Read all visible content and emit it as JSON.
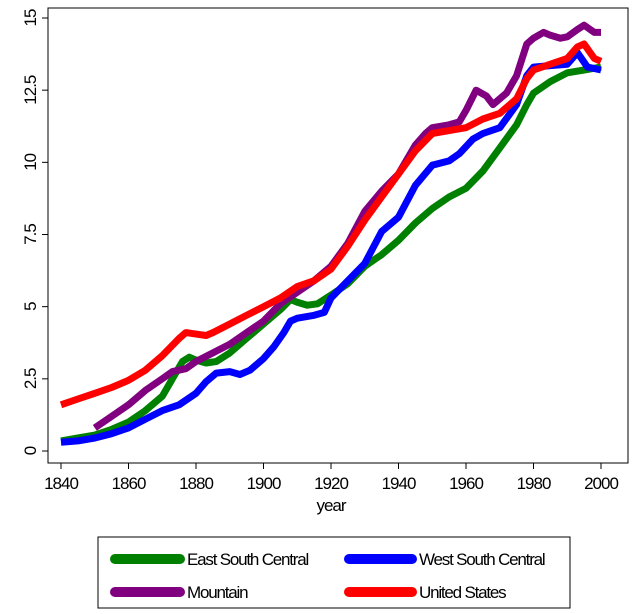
{
  "chart_data": {
    "type": "line",
    "title": "",
    "xlabel": "year",
    "ylabel": "",
    "xlim": [
      1840,
      2000
    ],
    "ylim": [
      0,
      15
    ],
    "xticks": [
      1840,
      1860,
      1880,
      1900,
      1920,
      1940,
      1960,
      1980,
      2000
    ],
    "yticks": [
      0,
      2.5,
      5,
      7.5,
      10,
      12.5,
      15
    ],
    "xtick_labels": [
      "1840",
      "1860",
      "1880",
      "1900",
      "1920",
      "1940",
      "1960",
      "1980",
      "2000"
    ],
    "ytick_labels": [
      "0",
      "2.5",
      "5",
      "7.5",
      "10",
      "12.5",
      "15"
    ],
    "grid": false,
    "legend_position": "bottom",
    "series": [
      {
        "name": "East South Central",
        "color": "#008000",
        "points": [
          [
            1840,
            0.35
          ],
          [
            1845,
            0.45
          ],
          [
            1850,
            0.55
          ],
          [
            1855,
            0.75
          ],
          [
            1860,
            1.0
          ],
          [
            1865,
            1.4
          ],
          [
            1870,
            1.9
          ],
          [
            1873,
            2.5
          ],
          [
            1876,
            3.1
          ],
          [
            1878,
            3.25
          ],
          [
            1880,
            3.15
          ],
          [
            1883,
            3.05
          ],
          [
            1886,
            3.1
          ],
          [
            1890,
            3.4
          ],
          [
            1895,
            3.9
          ],
          [
            1900,
            4.4
          ],
          [
            1905,
            4.9
          ],
          [
            1908,
            5.25
          ],
          [
            1910,
            5.15
          ],
          [
            1913,
            5.05
          ],
          [
            1916,
            5.1
          ],
          [
            1920,
            5.4
          ],
          [
            1925,
            5.8
          ],
          [
            1930,
            6.4
          ],
          [
            1935,
            6.8
          ],
          [
            1940,
            7.3
          ],
          [
            1945,
            7.9
          ],
          [
            1950,
            8.4
          ],
          [
            1955,
            8.8
          ],
          [
            1960,
            9.1
          ],
          [
            1965,
            9.7
          ],
          [
            1970,
            10.5
          ],
          [
            1975,
            11.3
          ],
          [
            1978,
            12.0
          ],
          [
            1980,
            12.4
          ],
          [
            1985,
            12.8
          ],
          [
            1990,
            13.1
          ],
          [
            1995,
            13.2
          ],
          [
            2000,
            13.3
          ]
        ]
      },
      {
        "name": "West South Central",
        "color": "#0000ff",
        "points": [
          [
            1840,
            0.3
          ],
          [
            1845,
            0.35
          ],
          [
            1850,
            0.45
          ],
          [
            1855,
            0.6
          ],
          [
            1860,
            0.8
          ],
          [
            1865,
            1.1
          ],
          [
            1870,
            1.4
          ],
          [
            1875,
            1.6
          ],
          [
            1880,
            2.0
          ],
          [
            1883,
            2.4
          ],
          [
            1886,
            2.7
          ],
          [
            1890,
            2.75
          ],
          [
            1893,
            2.65
          ],
          [
            1896,
            2.8
          ],
          [
            1900,
            3.2
          ],
          [
            1903,
            3.6
          ],
          [
            1906,
            4.1
          ],
          [
            1908,
            4.5
          ],
          [
            1910,
            4.6
          ],
          [
            1915,
            4.7
          ],
          [
            1918,
            4.8
          ],
          [
            1920,
            5.3
          ],
          [
            1925,
            5.9
          ],
          [
            1930,
            6.5
          ],
          [
            1935,
            7.6
          ],
          [
            1940,
            8.1
          ],
          [
            1945,
            9.2
          ],
          [
            1950,
            9.9
          ],
          [
            1955,
            10.05
          ],
          [
            1958,
            10.3
          ],
          [
            1962,
            10.8
          ],
          [
            1965,
            11.0
          ],
          [
            1970,
            11.2
          ],
          [
            1975,
            12.0
          ],
          [
            1978,
            13.0
          ],
          [
            1980,
            13.3
          ],
          [
            1985,
            13.35
          ],
          [
            1990,
            13.4
          ],
          [
            1993,
            13.8
          ],
          [
            1996,
            13.3
          ],
          [
            2000,
            13.2
          ]
        ]
      },
      {
        "name": "Mountain",
        "color": "#800080",
        "points": [
          [
            1850,
            0.8
          ],
          [
            1855,
            1.2
          ],
          [
            1860,
            1.6
          ],
          [
            1865,
            2.1
          ],
          [
            1870,
            2.5
          ],
          [
            1873,
            2.75
          ],
          [
            1877,
            2.85
          ],
          [
            1880,
            3.1
          ],
          [
            1885,
            3.4
          ],
          [
            1890,
            3.7
          ],
          [
            1895,
            4.1
          ],
          [
            1900,
            4.5
          ],
          [
            1905,
            5.1
          ],
          [
            1910,
            5.5
          ],
          [
            1915,
            5.9
          ],
          [
            1920,
            6.4
          ],
          [
            1925,
            7.2
          ],
          [
            1930,
            8.3
          ],
          [
            1935,
            9.0
          ],
          [
            1940,
            9.6
          ],
          [
            1945,
            10.6
          ],
          [
            1948,
            11.0
          ],
          [
            1950,
            11.2
          ],
          [
            1955,
            11.3
          ],
          [
            1958,
            11.4
          ],
          [
            1960,
            11.8
          ],
          [
            1963,
            12.5
          ],
          [
            1966,
            12.3
          ],
          [
            1968,
            12.0
          ],
          [
            1972,
            12.4
          ],
          [
            1975,
            13.0
          ],
          [
            1978,
            14.1
          ],
          [
            1980,
            14.3
          ],
          [
            1983,
            14.5
          ],
          [
            1985,
            14.4
          ],
          [
            1988,
            14.3
          ],
          [
            1990,
            14.35
          ],
          [
            1993,
            14.6
          ],
          [
            1995,
            14.75
          ],
          [
            1998,
            14.5
          ],
          [
            2000,
            14.5
          ]
        ]
      },
      {
        "name": "United States",
        "color": "#ff0000",
        "points": [
          [
            1840,
            1.6
          ],
          [
            1845,
            1.8
          ],
          [
            1850,
            2.0
          ],
          [
            1855,
            2.2
          ],
          [
            1860,
            2.45
          ],
          [
            1865,
            2.8
          ],
          [
            1870,
            3.3
          ],
          [
            1875,
            3.9
          ],
          [
            1877,
            4.1
          ],
          [
            1880,
            4.05
          ],
          [
            1883,
            4.0
          ],
          [
            1885,
            4.1
          ],
          [
            1890,
            4.4
          ],
          [
            1895,
            4.7
          ],
          [
            1900,
            5.0
          ],
          [
            1905,
            5.3
          ],
          [
            1910,
            5.7
          ],
          [
            1915,
            5.9
          ],
          [
            1920,
            6.3
          ],
          [
            1925,
            7.1
          ],
          [
            1930,
            8.0
          ],
          [
            1935,
            8.8
          ],
          [
            1940,
            9.6
          ],
          [
            1945,
            10.4
          ],
          [
            1950,
            11.0
          ],
          [
            1955,
            11.1
          ],
          [
            1960,
            11.2
          ],
          [
            1965,
            11.5
          ],
          [
            1970,
            11.7
          ],
          [
            1975,
            12.2
          ],
          [
            1978,
            12.9
          ],
          [
            1980,
            13.2
          ],
          [
            1985,
            13.4
          ],
          [
            1990,
            13.6
          ],
          [
            1993,
            14.0
          ],
          [
            1995,
            14.1
          ],
          [
            1998,
            13.6
          ],
          [
            2000,
            13.5
          ]
        ]
      }
    ]
  }
}
